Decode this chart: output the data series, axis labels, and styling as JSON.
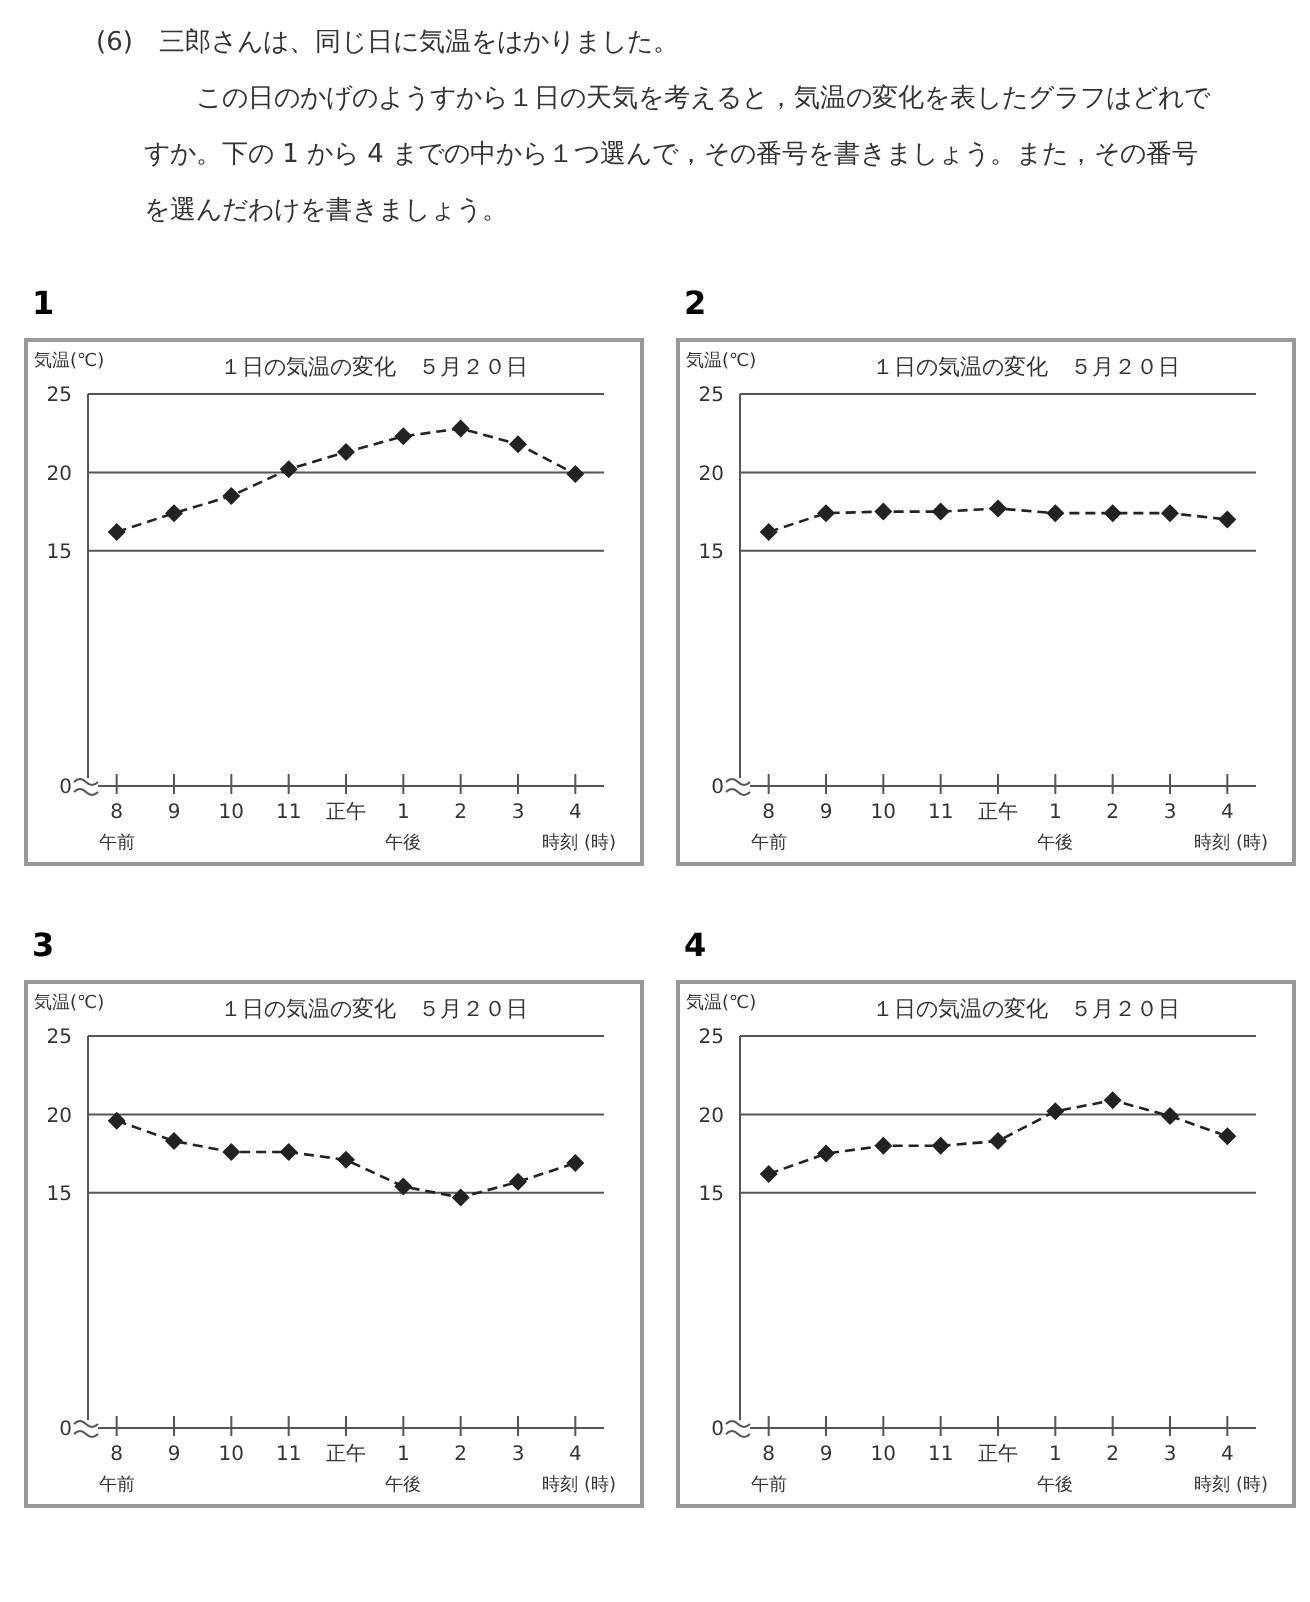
{
  "chart_data": [
    {
      "type": "other",
      "annotations": [
        "(6)　三郎さんは、同じ日に気温をはかりました。",
        "この日のかげのようすから１日の天気を考えると，気温の変化を表したグラフはどれですか。下の 1 から 4 までの中から１つ選んで，その番号を書きましょう。また，その番号を選んだわけを書きましょう。"
      ]
    },
    {
      "type": "line",
      "subtitle": "1",
      "title": "１日の気温の変化　５月２０日",
      "ylabel": "気温(℃)",
      "xlabel": "時刻 (時)",
      "categories": [
        "8",
        "9",
        "10",
        "11",
        "正午",
        "1",
        "2",
        "3",
        "4"
      ],
      "series": [
        {
          "color": "#222222",
          "values": [
            16.2,
            17.4,
            18.5,
            20.2,
            21.3,
            22.3,
            22.8,
            21.8,
            19.9
          ]
        }
      ],
      "ylim": [
        0,
        25
      ],
      "yticks": [
        0,
        15,
        20,
        25
      ],
      "grid": "y",
      "marker": "diamond",
      "line_style": "dashed",
      "annotations": [
        "午前",
        "午後"
      ]
    },
    {
      "type": "line",
      "subtitle": "2",
      "title": "１日の気温の変化　５月２０日",
      "ylabel": "気温(℃)",
      "xlabel": "時刻 (時)",
      "categories": [
        "8",
        "9",
        "10",
        "11",
        "正午",
        "1",
        "2",
        "3",
        "4"
      ],
      "series": [
        {
          "color": "#222222",
          "values": [
            16.2,
            17.4,
            17.5,
            17.5,
            17.7,
            17.4,
            17.4,
            17.4,
            17.0
          ]
        }
      ],
      "ylim": [
        0,
        25
      ],
      "yticks": [
        0,
        15,
        20,
        25
      ],
      "grid": "y",
      "marker": "diamond",
      "line_style": "dashed",
      "annotations": [
        "午前",
        "午後"
      ]
    },
    {
      "type": "line",
      "subtitle": "3",
      "title": "１日の気温の変化　５月２０日",
      "ylabel": "気温(℃)",
      "xlabel": "時刻 (時)",
      "categories": [
        "8",
        "9",
        "10",
        "11",
        "正午",
        "1",
        "2",
        "3",
        "4"
      ],
      "series": [
        {
          "color": "#222222",
          "values": [
            19.6,
            18.3,
            17.6,
            17.6,
            17.1,
            15.4,
            14.7,
            15.7,
            16.9
          ]
        }
      ],
      "ylim": [
        0,
        25
      ],
      "yticks": [
        0,
        15,
        20,
        25
      ],
      "grid": "y",
      "marker": "diamond",
      "line_style": "dashed",
      "annotations": [
        "午前",
        "午後"
      ]
    },
    {
      "type": "line",
      "subtitle": "4",
      "title": "１日の気温の変化　５月２０日",
      "ylabel": "気温(℃)",
      "xlabel": "時刻 (時)",
      "categories": [
        "8",
        "9",
        "10",
        "11",
        "正午",
        "1",
        "2",
        "3",
        "4"
      ],
      "series": [
        {
          "color": "#222222",
          "values": [
            16.2,
            17.5,
            18.0,
            18.0,
            18.3,
            20.2,
            20.9,
            19.9,
            18.6
          ]
        }
      ],
      "ylim": [
        0,
        25
      ],
      "yticks": [
        0,
        15,
        20,
        25
      ],
      "grid": "y",
      "marker": "diamond",
      "line_style": "dashed",
      "annotations": [
        "午前",
        "午後"
      ]
    }
  ]
}
